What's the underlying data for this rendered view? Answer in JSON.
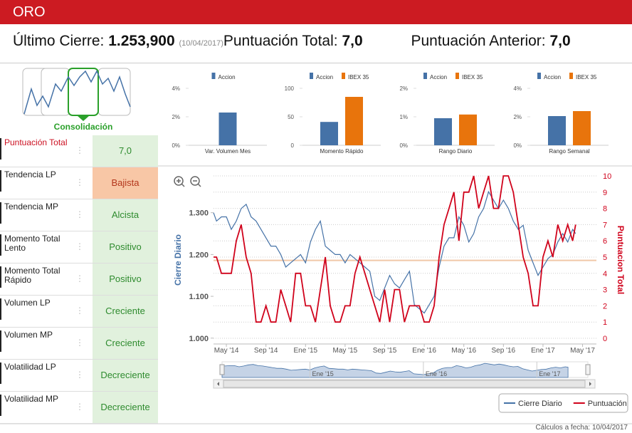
{
  "header": {
    "title": "ORO"
  },
  "summary": {
    "last_close_label": "Último Cierre:",
    "last_close": "1.253,900",
    "last_close_date": "(10/04/2017)",
    "total_label": "Puntuación Total:",
    "total": "7,0",
    "previous_label": "Puntuación Anterior:",
    "previous": "7,0"
  },
  "pattern": {
    "label": "Consolidación"
  },
  "indicators": [
    {
      "label": "Puntuación Total",
      "value": "7,0",
      "color": "#e1f1dd",
      "text_color": "#2e8b2e",
      "label_color": "#cc1122"
    },
    {
      "label": "Tendencia LP",
      "value": "Bajista",
      "color": "#f8c7a6",
      "text_color": "#b3361b",
      "label_color": "#222222"
    },
    {
      "label": "Tendencia MP",
      "value": "Alcista",
      "color": "#e1f1dd",
      "text_color": "#2e8b2e",
      "label_color": "#222222"
    },
    {
      "label": "Momento Total Lento",
      "value": "Positivo",
      "color": "#e1f1dd",
      "text_color": "#2e8b2e",
      "label_color": "#222222"
    },
    {
      "label": "Momento Total Rápido",
      "value": "Positivo",
      "color": "#e1f1dd",
      "text_color": "#2e8b2e",
      "label_color": "#222222"
    },
    {
      "label": "Volumen LP",
      "value": "Creciente",
      "color": "#e1f1dd",
      "text_color": "#2e8b2e",
      "label_color": "#222222"
    },
    {
      "label": "Volumen MP",
      "value": "Creciente",
      "color": "#e1f1dd",
      "text_color": "#2e8b2e",
      "label_color": "#222222"
    },
    {
      "label": "Volatilidad LP",
      "value": "Decreciente",
      "color": "#e1f1dd",
      "text_color": "#2e8b2e",
      "label_color": "#222222"
    },
    {
      "label": "Volatilidad MP",
      "value": "Decreciente",
      "color": "#e1f1dd",
      "text_color": "#2e8b2e",
      "label_color": "#222222"
    }
  ],
  "mini_charts": [
    {
      "type": "bar",
      "categories": [
        "Var. Volumen Mes"
      ],
      "series": [
        {
          "name": "Accion",
          "color": "#4572a7",
          "values": [
            2.3
          ]
        }
      ],
      "ylim": [
        0,
        4
      ],
      "yticks": [
        {
          "value": 0,
          "label": "0%"
        },
        {
          "value": 2,
          "label": "2%"
        },
        {
          "value": 4,
          "label": "4%"
        }
      ]
    },
    {
      "type": "bar",
      "categories": [
        "Momento Rápido"
      ],
      "series": [
        {
          "name": "Accion",
          "color": "#4572a7",
          "values": [
            41
          ]
        },
        {
          "name": "IBEX 35",
          "color": "#e8740c",
          "values": [
            85
          ]
        }
      ],
      "ylim": [
        0,
        100
      ],
      "yticks": [
        0,
        50,
        100
      ]
    },
    {
      "type": "bar",
      "categories": [
        "Rango Diario"
      ],
      "series": [
        {
          "name": "Accion",
          "color": "#4572a7",
          "values": [
            0.95
          ]
        },
        {
          "name": "IBEX 35",
          "color": "#e8740c",
          "values": [
            1.08
          ]
        }
      ],
      "ylim": [
        0,
        2
      ],
      "yticks": [
        {
          "value": 0,
          "label": "0%"
        },
        {
          "value": 1,
          "label": "1%"
        },
        {
          "value": 2,
          "label": "2%"
        }
      ]
    },
    {
      "type": "bar",
      "categories": [
        "Rango Semanal"
      ],
      "series": [
        {
          "name": "Accion",
          "color": "#4572a7",
          "values": [
            2.05
          ]
        },
        {
          "name": "IBEX 35",
          "color": "#e8740c",
          "values": [
            2.4
          ]
        }
      ],
      "ylim": [
        0,
        4
      ],
      "yticks": [
        {
          "value": 0,
          "label": "0%"
        },
        {
          "value": 2,
          "label": "2%"
        },
        {
          "value": 4,
          "label": "4%"
        }
      ]
    }
  ],
  "chart_data": {
    "type": "line",
    "ylabel": "Cierre Diario",
    "y2label": "Puntuacion Total",
    "x": [
      -1.3,
      -1,
      -0.5,
      0,
      0.5,
      1,
      1.5,
      2,
      2.5,
      3,
      3.5,
      4,
      4.5,
      5,
      5.5,
      6,
      6.5,
      7,
      7.5,
      8,
      8.5,
      9,
      9.5,
      10,
      10.5,
      11,
      11.5,
      12,
      12.5,
      13,
      13.5,
      14,
      14.5,
      15,
      15.5,
      16,
      16.5,
      17,
      17.5,
      18,
      18.5,
      19,
      19.5,
      20,
      20.5,
      21,
      21.5,
      22,
      22.5,
      23,
      23.5,
      24,
      24.5,
      25,
      25.5,
      26,
      26.5,
      27,
      27.5,
      28,
      28.5,
      29,
      29.5,
      30,
      30.5,
      31,
      31.5,
      32,
      32.5,
      33,
      33.5,
      34,
      34.5,
      35,
      35.3
    ],
    "series": [
      {
        "name": "Cierre Diario",
        "color": "#4572a7",
        "values": [
          1.3,
          1.28,
          1.29,
          1.29,
          1.26,
          1.28,
          1.31,
          1.32,
          1.29,
          1.28,
          1.26,
          1.24,
          1.22,
          1.22,
          1.2,
          1.17,
          1.18,
          1.19,
          1.2,
          1.18,
          1.23,
          1.26,
          1.28,
          1.22,
          1.21,
          1.2,
          1.2,
          1.18,
          1.2,
          1.19,
          1.18,
          1.17,
          1.16,
          1.1,
          1.09,
          1.12,
          1.15,
          1.13,
          1.12,
          1.14,
          1.16,
          1.08,
          1.07,
          1.06,
          1.08,
          1.1,
          1.17,
          1.22,
          1.24,
          1.24,
          1.29,
          1.27,
          1.23,
          1.25,
          1.29,
          1.31,
          1.35,
          1.33,
          1.31,
          1.33,
          1.31,
          1.28,
          1.26,
          1.27,
          1.21,
          1.18,
          1.15,
          1.17,
          1.19,
          1.2,
          1.23,
          1.25,
          1.23,
          1.26,
          1.25
        ]
      },
      {
        "name": "Puntuación",
        "color": "#d0021b",
        "axis": "y2",
        "values": [
          5,
          5,
          4,
          4,
          4,
          6,
          7,
          5,
          4,
          1,
          1,
          2,
          1,
          1,
          3,
          2,
          1,
          4,
          4,
          2,
          2,
          1,
          3,
          5,
          2,
          1,
          1,
          2,
          2,
          4,
          5,
          4,
          3,
          2,
          1,
          3,
          1,
          3,
          3,
          1,
          2,
          2,
          2,
          1,
          1,
          2,
          5,
          7,
          8,
          9,
          6,
          9,
          9,
          10,
          8,
          9,
          10,
          8,
          8,
          10,
          10,
          9,
          7,
          5,
          4,
          2,
          2,
          5,
          6,
          5,
          7,
          6,
          7,
          6,
          7
        ]
      }
    ],
    "reference_line": {
      "value": 4.8,
      "axis": "y2",
      "color": "#f0c8a8"
    },
    "xlim": [
      -1.3,
      37.4
    ],
    "xticks": [
      {
        "value": 0,
        "label": "May '14"
      },
      {
        "value": 4,
        "label": "Sep '14"
      },
      {
        "value": 8,
        "label": "Ene '15"
      },
      {
        "value": 12,
        "label": "May '15"
      },
      {
        "value": 16,
        "label": "Sep '15"
      },
      {
        "value": 20,
        "label": "Ene '16"
      },
      {
        "value": 24,
        "label": "May '16"
      },
      {
        "value": 28,
        "label": "Sep '16"
      },
      {
        "value": 32,
        "label": "Ene '17"
      },
      {
        "value": 36,
        "label": "May '17"
      }
    ],
    "ylim": [
      0.986,
      1.388
    ],
    "yticks": [
      {
        "value": 1.0,
        "label": "1.000"
      },
      {
        "value": 1.1,
        "label": "1.100"
      },
      {
        "value": 1.2,
        "label": "1.200"
      },
      {
        "value": 1.3,
        "label": "1.300"
      }
    ],
    "y2lim": [
      -0.35,
      10
    ],
    "y2ticks": [
      0,
      1,
      2,
      3,
      4,
      5,
      6,
      7,
      8,
      9,
      10
    ],
    "grid": true,
    "legend": "bottom-right",
    "navigator_xticks": [
      {
        "value": 8,
        "label": "Ene '15"
      },
      {
        "value": 20,
        "label": "Ene '16"
      },
      {
        "value": 32,
        "label": "Ene '17"
      }
    ]
  },
  "footer": "Cálculos a fecha: 10/04/2017"
}
